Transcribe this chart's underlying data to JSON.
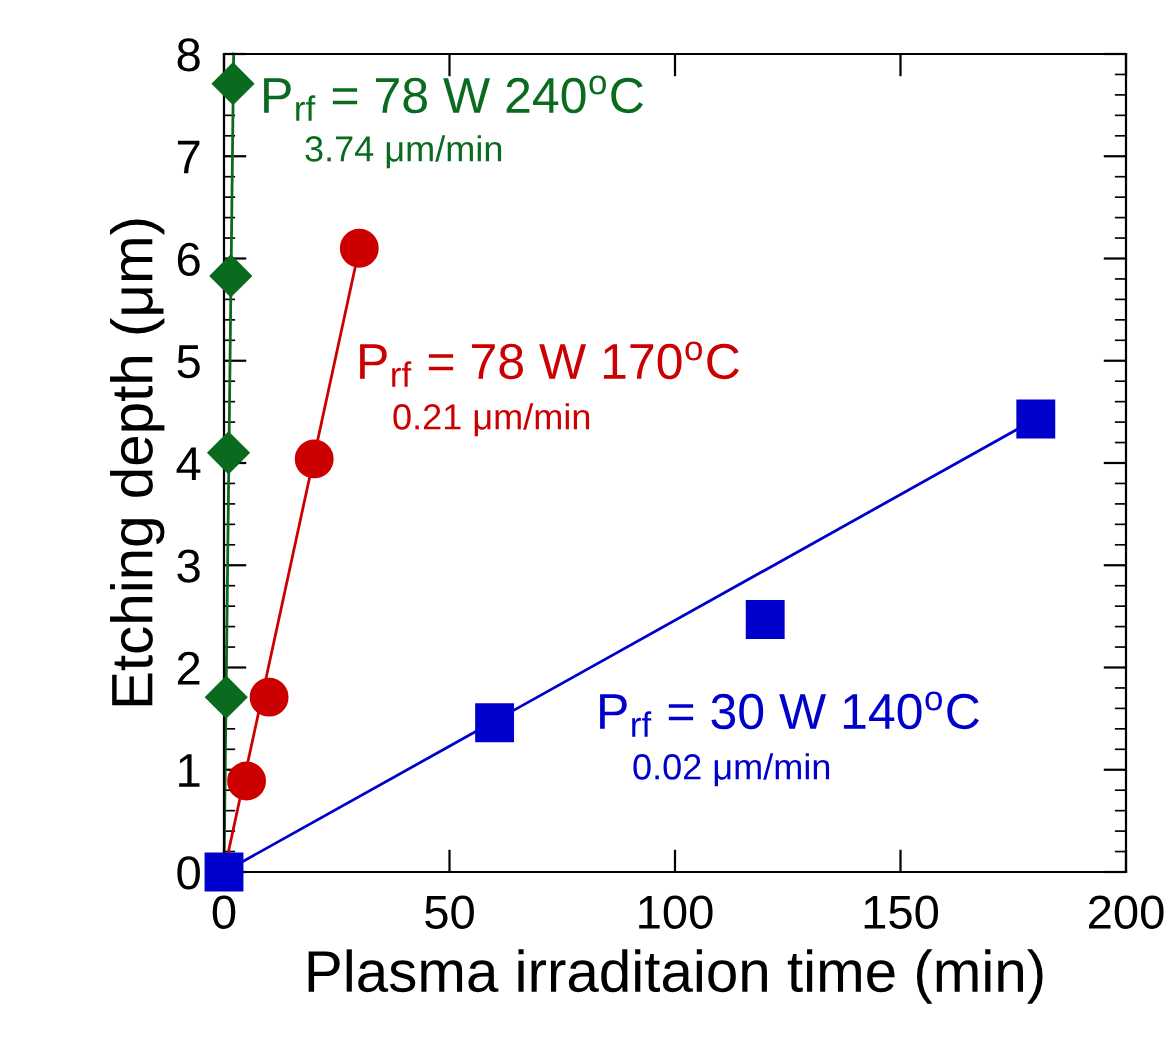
{
  "chart_data": {
    "type": "scatter",
    "xlabel": "Plasma irraditaion time (min)",
    "ylabel": "Etching depth (μm)",
    "xlim": [
      0,
      200
    ],
    "xticks": [
      0,
      50,
      100,
      150,
      200
    ],
    "ylim": [
      0,
      8
    ],
    "yticks": [
      0,
      1,
      2,
      3,
      4,
      5,
      6,
      7,
      8
    ],
    "grid": false,
    "series": [
      {
        "type": "line",
        "color": "#0a6b1e",
        "x": [
          0,
          2.14
        ],
        "values": [
          0,
          8
        ],
        "marker": "none"
      },
      {
        "type": "line",
        "color": "#cc0000",
        "x": [
          0,
          30
        ],
        "values": [
          0,
          6.1
        ],
        "marker": "none"
      },
      {
        "type": "line",
        "color": "#0000cc",
        "x": [
          0,
          180
        ],
        "values": [
          0,
          4.43
        ],
        "marker": "none"
      },
      {
        "color": "#0a6b1e",
        "x": [
          0.5,
          1,
          1.5,
          2
        ],
        "values": [
          1.71,
          4.1,
          5.83,
          7.71
        ],
        "marker": "diamond"
      },
      {
        "color": "#cc0000",
        "x": [
          5,
          10,
          20,
          30
        ],
        "values": [
          0.89,
          1.71,
          4.04,
          6.1
        ],
        "marker": "circle"
      },
      {
        "color": "#0000cc",
        "x": [
          0,
          60,
          120,
          180
        ],
        "values": [
          0,
          1.46,
          2.47,
          4.43
        ],
        "marker": "square"
      }
    ],
    "annotations": [
      "P$_{rf}$ = 78 W 240$^{o}$C",
      "3.74 μm/min",
      "P$_{rf}$ = 78 W 170$^{o}$C",
      "0.21 μm/min",
      "P$_{rf}$ = 30 W 140$^{o}$C",
      "0.02 μm/min"
    ]
  }
}
